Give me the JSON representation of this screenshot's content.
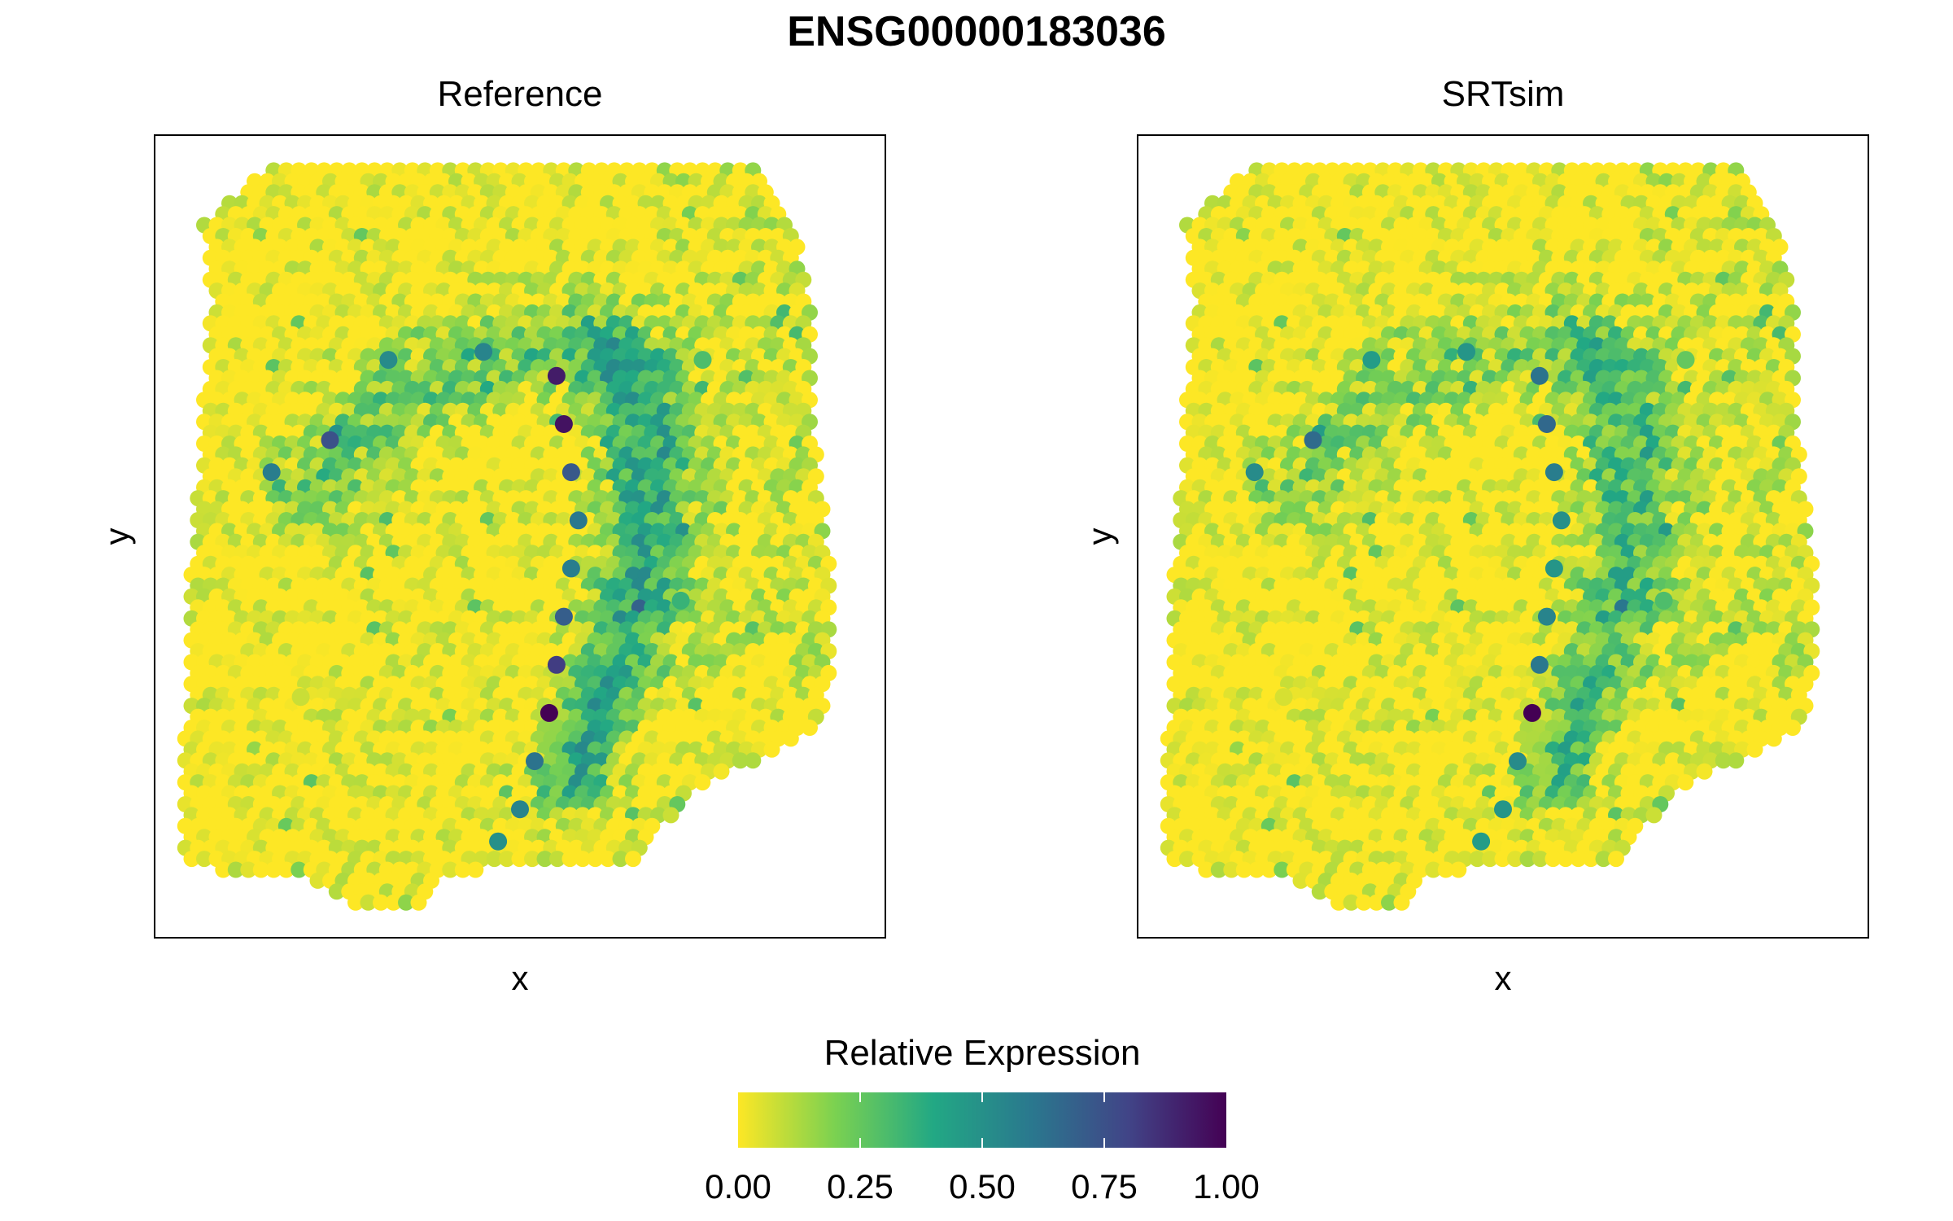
{
  "chart_data": {
    "type": "scatter",
    "title": "ENSG00000183036",
    "legend": {
      "title": "Relative Expression",
      "placement": "bottom",
      "ticks": [
        "0.00",
        "0.25",
        "0.50",
        "0.75",
        "1.00"
      ],
      "range": [
        0,
        1
      ],
      "colormap": "viridis-reversed",
      "colors": [
        "#FDE725",
        "#7AD151",
        "#22A884",
        "#2A788E",
        "#414487",
        "#440154"
      ]
    },
    "panels": [
      {
        "title": "Reference",
        "xlabel": "x",
        "ylabel": "y",
        "grid": false,
        "points": [
          {
            "x": 0.55,
            "y": 0.7,
            "v": 0.92
          },
          {
            "x": 0.56,
            "y": 0.64,
            "v": 0.95
          },
          {
            "x": 0.57,
            "y": 0.58,
            "v": 0.72
          },
          {
            "x": 0.58,
            "y": 0.52,
            "v": 0.6
          },
          {
            "x": 0.57,
            "y": 0.46,
            "v": 0.58
          },
          {
            "x": 0.56,
            "y": 0.4,
            "v": 0.7
          },
          {
            "x": 0.55,
            "y": 0.34,
            "v": 0.82
          },
          {
            "x": 0.54,
            "y": 0.28,
            "v": 1.0
          },
          {
            "x": 0.52,
            "y": 0.22,
            "v": 0.62
          },
          {
            "x": 0.5,
            "y": 0.16,
            "v": 0.55
          },
          {
            "x": 0.47,
            "y": 0.12,
            "v": 0.5
          },
          {
            "x": 0.32,
            "y": 0.72,
            "v": 0.52
          },
          {
            "x": 0.24,
            "y": 0.62,
            "v": 0.75
          },
          {
            "x": 0.16,
            "y": 0.58,
            "v": 0.58
          },
          {
            "x": 0.45,
            "y": 0.73,
            "v": 0.55
          },
          {
            "x": 0.72,
            "y": 0.42,
            "v": 0.35
          },
          {
            "x": 0.2,
            "y": 0.3,
            "v": 0.08
          },
          {
            "x": 0.75,
            "y": 0.72,
            "v": 0.3
          }
        ]
      },
      {
        "title": "SRTsim",
        "xlabel": "x",
        "ylabel": "y",
        "grid": false,
        "points": [
          {
            "x": 0.55,
            "y": 0.7,
            "v": 0.62
          },
          {
            "x": 0.56,
            "y": 0.64,
            "v": 0.66
          },
          {
            "x": 0.57,
            "y": 0.58,
            "v": 0.58
          },
          {
            "x": 0.58,
            "y": 0.52,
            "v": 0.5
          },
          {
            "x": 0.57,
            "y": 0.46,
            "v": 0.48
          },
          {
            "x": 0.56,
            "y": 0.4,
            "v": 0.55
          },
          {
            "x": 0.55,
            "y": 0.34,
            "v": 0.6
          },
          {
            "x": 0.54,
            "y": 0.28,
            "v": 1.0
          },
          {
            "x": 0.52,
            "y": 0.22,
            "v": 0.52
          },
          {
            "x": 0.5,
            "y": 0.16,
            "v": 0.48
          },
          {
            "x": 0.47,
            "y": 0.12,
            "v": 0.45
          },
          {
            "x": 0.32,
            "y": 0.72,
            "v": 0.45
          },
          {
            "x": 0.24,
            "y": 0.62,
            "v": 0.65
          },
          {
            "x": 0.16,
            "y": 0.58,
            "v": 0.52
          },
          {
            "x": 0.45,
            "y": 0.73,
            "v": 0.48
          },
          {
            "x": 0.72,
            "y": 0.42,
            "v": 0.3
          },
          {
            "x": 0.2,
            "y": 0.3,
            "v": 0.06
          },
          {
            "x": 0.75,
            "y": 0.72,
            "v": 0.25
          }
        ]
      }
    ]
  }
}
